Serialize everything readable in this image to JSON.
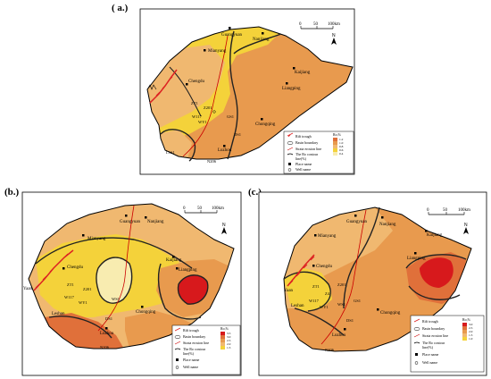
{
  "panels": {
    "a": {
      "label": "( a.)"
    },
    "b": {
      "label": "(b.)"
    },
    "c": {
      "label": "(c.)"
    }
  },
  "scale": {
    "ticks": [
      "0",
      "50",
      "100km"
    ]
  },
  "north": "N",
  "cities": {
    "guangyuan": "Guangyuan",
    "nanjiang": "Nanjiang",
    "mianyang": "Mianyang",
    "chengdu": "Chengdu",
    "kaijiang": "Kaijiang",
    "liangping": "Liangping",
    "chongqing": "Chongqing",
    "luzhou": "Luzhou",
    "yaan": "Yaan",
    "leshan": "Leshan"
  },
  "wells": {
    "w201": "Z201",
    "w117": "W117",
    "wy1": "WY1",
    "zt1": "ZT1",
    "z4": "Z4",
    "ws1": "WS1",
    "ds1": "DS1",
    "gs1": "GS1",
    "n206": "N206",
    "ls1": "L1S1"
  },
  "legend": {
    "rift": "Rift trough",
    "basin": "Basin boundary",
    "erosion": "Strata erosion line",
    "contour": "The Ro contour",
    "contour2": "line(%)",
    "place": "Place name",
    "well": "Well name",
    "scale_title": "Ro,%"
  },
  "ro_scale": {
    "a": [
      "1.2",
      "1.0",
      "0.8",
      "0.6",
      "0.4"
    ],
    "b": [
      "3.5",
      "3.0",
      "2.5",
      "2.0",
      "1.5"
    ],
    "c": [
      "3.0",
      "2.5",
      "2.0",
      "1.5",
      "1.0"
    ]
  },
  "colors": {
    "deep_red": "#d7191c",
    "dark_orange": "#e0703a",
    "orange": "#e89a4e",
    "light_orange": "#f0b870",
    "yellow": "#f4d23a",
    "pale_yellow": "#f8ecb0"
  }
}
